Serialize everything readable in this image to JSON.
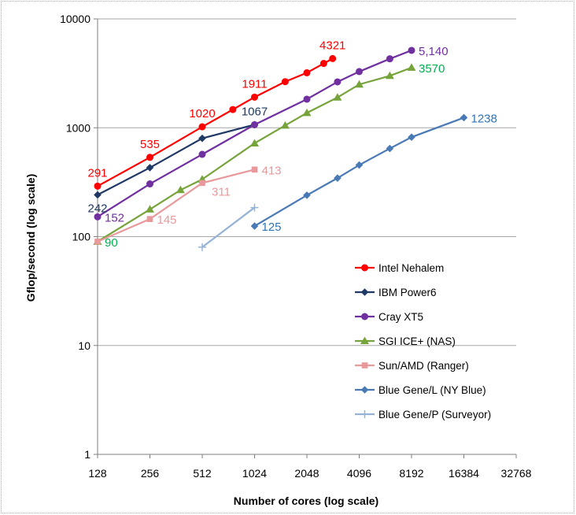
{
  "chart_data": {
    "type": "line",
    "title": "",
    "xlabel": "Number of cores (log scale)",
    "ylabel": "Gflop/second (log scale)",
    "x_scale": "log2",
    "y_scale": "log10",
    "xlim": [
      128,
      32768
    ],
    "ylim": [
      1,
      10000
    ],
    "x_ticks": [
      128,
      256,
      512,
      1024,
      2048,
      4096,
      8192,
      16384,
      32768
    ],
    "y_ticks": [
      1,
      10,
      100,
      1000,
      10000
    ],
    "x_tick_labels": [
      "128",
      "256",
      "512",
      "1024",
      "2048",
      "4096",
      "8192",
      "16384",
      "32768"
    ],
    "y_tick_labels": [
      "1",
      "10",
      "100",
      "1000",
      "10000"
    ],
    "grid": "horizontal",
    "legend_position": "lower-right",
    "series": [
      {
        "name": "Intel Nehalem",
        "color": "#ff0000",
        "marker": "circle",
        "points": [
          [
            128,
            291
          ],
          [
            256,
            535
          ],
          [
            512,
            1020
          ],
          [
            768,
            1470
          ],
          [
            1024,
            1911
          ],
          [
            1536,
            2650
          ],
          [
            2048,
            3200
          ],
          [
            2560,
            3900
          ],
          [
            2880,
            4321
          ]
        ],
        "labels": [
          {
            "x": 128,
            "y": 291,
            "text": "291",
            "pos": "above"
          },
          {
            "x": 256,
            "y": 535,
            "text": "535",
            "pos": "above"
          },
          {
            "x": 512,
            "y": 1020,
            "text": "1020",
            "pos": "above"
          },
          {
            "x": 1024,
            "y": 1911,
            "text": "1911",
            "pos": "above"
          },
          {
            "x": 2880,
            "y": 4321,
            "text": "4321",
            "pos": "above"
          }
        ]
      },
      {
        "name": "IBM Power6",
        "color": "#1f3864",
        "marker": "diamond",
        "points": [
          [
            128,
            242
          ],
          [
            256,
            430
          ],
          [
            512,
            800
          ],
          [
            1024,
            1067
          ]
        ],
        "labels": [
          {
            "x": 128,
            "y": 242,
            "text": "242",
            "pos": "below"
          },
          {
            "x": 1024,
            "y": 1067,
            "text": "1067",
            "pos": "above"
          }
        ]
      },
      {
        "name": "Cray XT5",
        "color": "#7030a0",
        "marker": "circle",
        "points": [
          [
            128,
            152
          ],
          [
            256,
            305
          ],
          [
            512,
            570
          ],
          [
            1024,
            1067
          ],
          [
            2048,
            1830
          ],
          [
            3072,
            2640
          ],
          [
            4096,
            3280
          ],
          [
            6144,
            4300
          ],
          [
            8192,
            5140
          ]
        ],
        "labels": [
          {
            "x": 128,
            "y": 152,
            "text": "152",
            "pos": "right"
          },
          {
            "x": 8192,
            "y": 5140,
            "text": "5,140",
            "pos": "right"
          }
        ]
      },
      {
        "name": "SGI ICE+ (NAS)",
        "color": "#77a33b",
        "marker": "triangle",
        "points": [
          [
            128,
            90
          ],
          [
            256,
            178
          ],
          [
            384,
            268
          ],
          [
            512,
            336
          ],
          [
            1024,
            720
          ],
          [
            1536,
            1050
          ],
          [
            2048,
            1370
          ],
          [
            3072,
            1900
          ],
          [
            4096,
            2500
          ],
          [
            6144,
            3000
          ],
          [
            8192,
            3570
          ]
        ],
        "labels": [
          {
            "x": 128,
            "y": 90,
            "text": "90",
            "pos": "right"
          },
          {
            "x": 8192,
            "y": 3570,
            "text": "3570",
            "pos": "right"
          }
        ]
      },
      {
        "name": "Sun/AMD (Ranger)",
        "color": "#e8999b",
        "marker": "square",
        "points": [
          [
            128,
            90
          ],
          [
            256,
            145
          ],
          [
            512,
            311
          ],
          [
            1024,
            413
          ]
        ],
        "labels": [
          {
            "x": 256,
            "y": 145,
            "text": "145",
            "pos": "right"
          },
          {
            "x": 512,
            "y": 311,
            "text": "311",
            "pos": "below-right"
          },
          {
            "x": 1024,
            "y": 413,
            "text": "413",
            "pos": "right"
          }
        ]
      },
      {
        "name": "Blue Gene/L (NY Blue)",
        "color": "#4a7ab5",
        "marker": "diamond",
        "points": [
          [
            1024,
            125
          ],
          [
            2048,
            240
          ],
          [
            3072,
            345
          ],
          [
            4096,
            455
          ],
          [
            6144,
            645
          ],
          [
            8192,
            820
          ],
          [
            16384,
            1238
          ]
        ],
        "labels": [
          {
            "x": 1024,
            "y": 125,
            "text": "125",
            "pos": "right"
          },
          {
            "x": 16384,
            "y": 1238,
            "text": "1238",
            "pos": "right"
          }
        ]
      },
      {
        "name": "Blue Gene/P (Surveyor)",
        "color": "#95b3d7",
        "marker": "plus",
        "points": [
          [
            512,
            80
          ],
          [
            1024,
            185
          ]
        ],
        "labels": []
      }
    ]
  },
  "label_colors": {
    "Intel Nehalem": "#ff0000",
    "IBM Power6": "#1f3864",
    "Cray XT5": "#7030a0",
    "SGI ICE+ (NAS)": "#00b050",
    "Sun/AMD (Ranger)": "#e8999b",
    "Blue Gene/L (NY Blue)": "#2e75b6",
    "Blue Gene/P (Surveyor)": "#95b3d7"
  }
}
